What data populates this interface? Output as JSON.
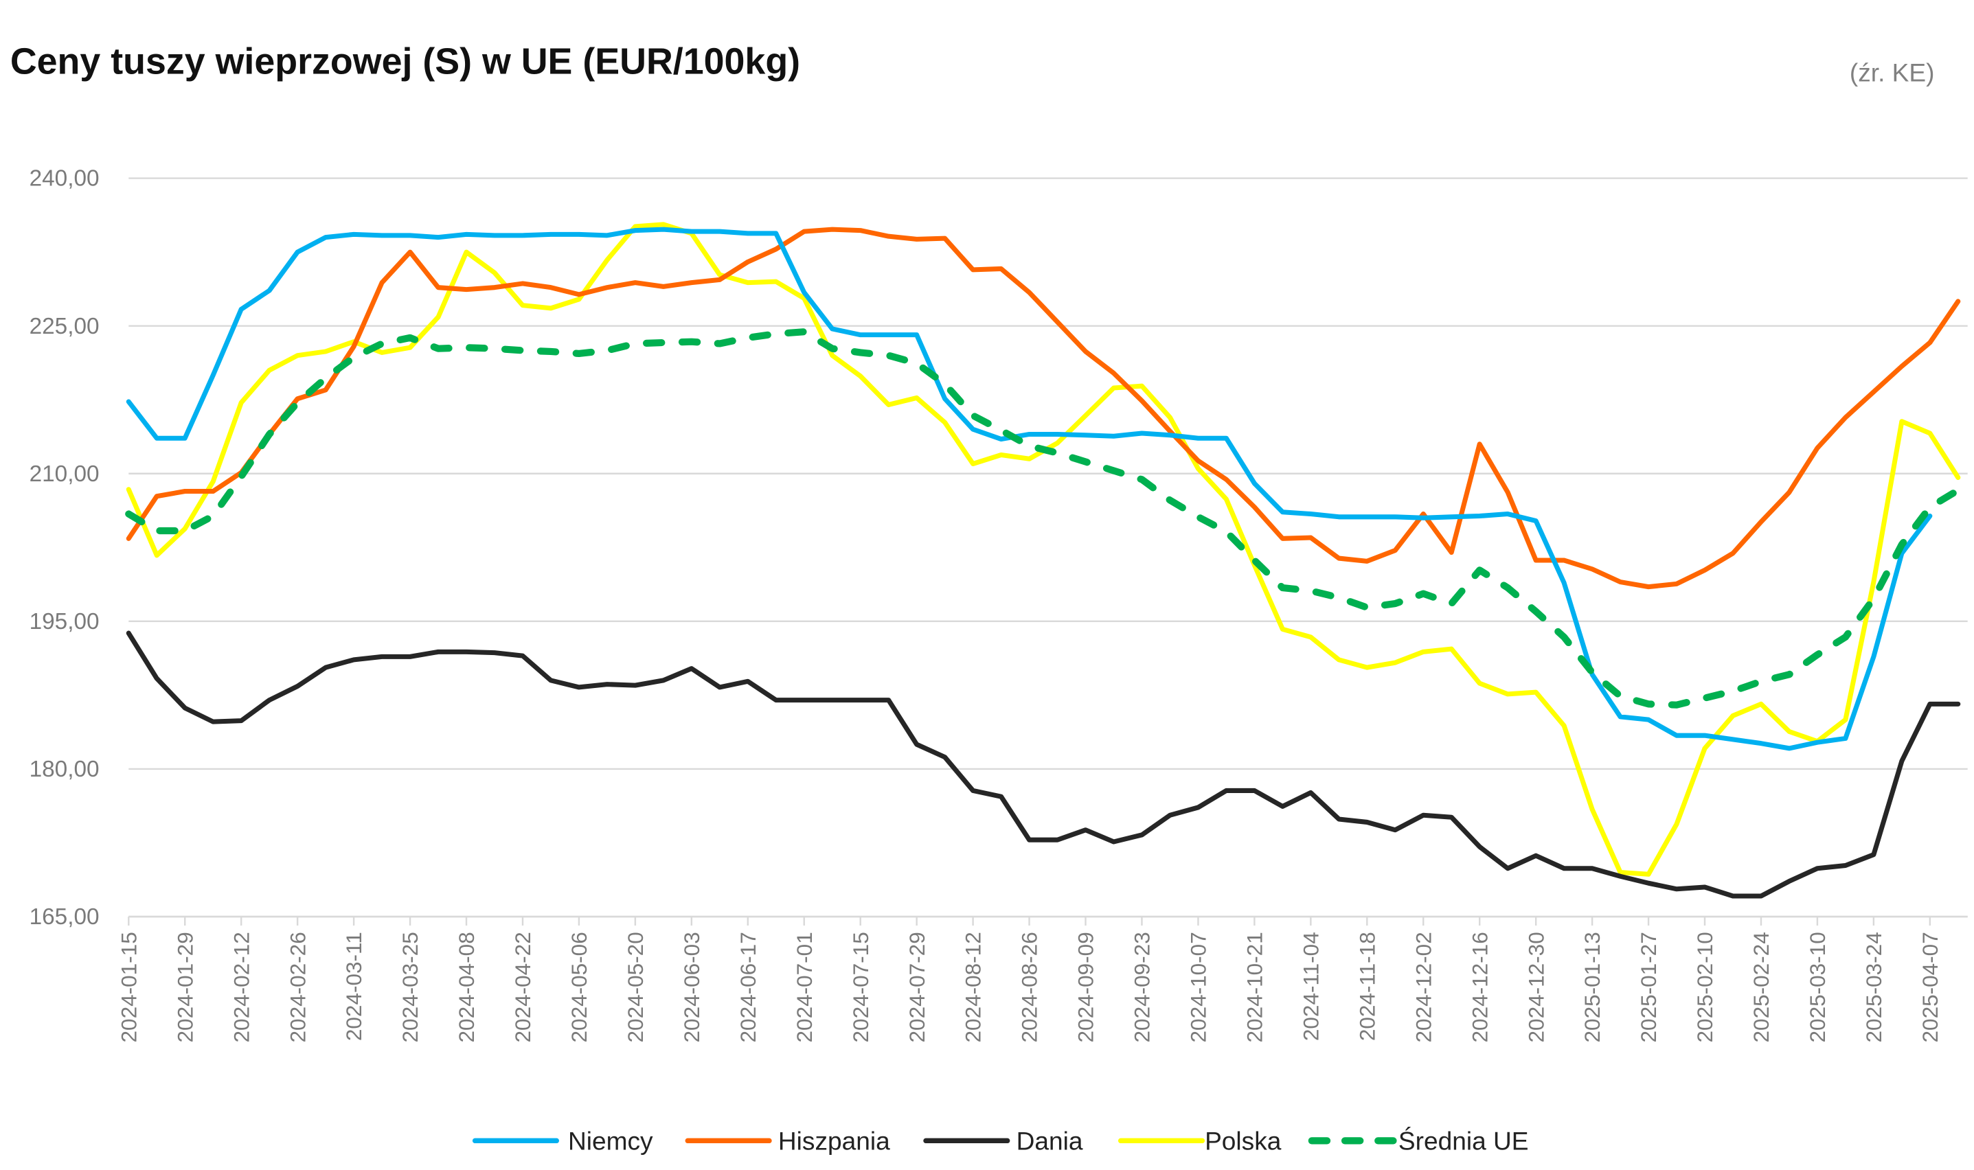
{
  "chart_data": {
    "type": "line",
    "title": "Ceny tuszy wieprzowej (S) w UE (EUR/100kg)",
    "source_note": "(źr. KE)",
    "xlabel": "",
    "ylabel": "",
    "ylim": [
      165,
      240
    ],
    "y_ticks": [
      "165,00",
      "180,00",
      "195,00",
      "210,00",
      "225,00",
      "240,00"
    ],
    "y_tick_values": [
      165,
      180,
      195,
      210,
      225,
      240
    ],
    "grid": "horizontal",
    "legend_position": "bottom",
    "x": [
      "2024-01-15",
      "2024-01-22",
      "2024-01-29",
      "2024-02-05",
      "2024-02-12",
      "2024-02-19",
      "2024-02-26",
      "2024-03-04",
      "2024-03-11",
      "2024-03-18",
      "2024-03-25",
      "2024-04-01",
      "2024-04-08",
      "2024-04-15",
      "2024-04-22",
      "2024-04-29",
      "2024-05-06",
      "2024-05-13",
      "2024-05-20",
      "2024-05-27",
      "2024-06-03",
      "2024-06-10",
      "2024-06-17",
      "2024-06-24",
      "2024-07-01",
      "2024-07-08",
      "2024-07-15",
      "2024-07-22",
      "2024-07-29",
      "2024-08-05",
      "2024-08-12",
      "2024-08-19",
      "2024-08-26",
      "2024-09-02",
      "2024-09-09",
      "2024-09-16",
      "2024-09-23",
      "2024-09-30",
      "2024-10-07",
      "2024-10-14",
      "2024-10-21",
      "2024-10-28",
      "2024-11-04",
      "2024-11-11",
      "2024-11-18",
      "2024-11-25",
      "2024-12-02",
      "2024-12-09",
      "2024-12-16",
      "2024-12-23",
      "2024-12-30",
      "2025-01-06",
      "2025-01-13",
      "2025-01-20",
      "2025-01-27",
      "2025-02-03",
      "2025-02-10",
      "2025-02-17",
      "2025-02-24",
      "2025-03-03",
      "2025-03-10",
      "2025-03-17",
      "2025-03-24",
      "2025-03-31",
      "2025-04-07",
      "2025-04-14"
    ],
    "x_tick_labels": [
      "2024-01-15",
      "2024-01-29",
      "2024-02-12",
      "2024-02-26",
      "2024-03-11",
      "2024-03-25",
      "2024-04-08",
      "2024-04-22",
      "2024-05-06",
      "2024-05-20",
      "2024-06-03",
      "2024-06-17",
      "2024-07-01",
      "2024-07-15",
      "2024-07-29",
      "2024-08-12",
      "2024-08-26",
      "2024-09-09",
      "2024-09-23",
      "2024-10-07",
      "2024-10-21",
      "2024-11-04",
      "2024-11-18",
      "2024-12-02",
      "2024-12-16",
      "2024-12-30",
      "2025-01-13",
      "2025-01-27",
      "2025-02-10",
      "2025-02-24",
      "2025-03-10",
      "2025-03-24",
      "2025-04-07"
    ],
    "series": [
      {
        "name": "Niemcy",
        "color": "#00B0F0",
        "dashed": false,
        "values": [
          217.3,
          213.6,
          213.6,
          220.0,
          226.7,
          228.6,
          232.5,
          234.0,
          234.3,
          234.2,
          234.2,
          234.0,
          234.3,
          234.2,
          234.2,
          234.3,
          234.3,
          234.2,
          234.7,
          234.8,
          234.6,
          234.6,
          234.4,
          234.4,
          228.4,
          224.7,
          224.1,
          224.1,
          224.1,
          217.6,
          214.5,
          213.5,
          214.0,
          214.0,
          213.9,
          213.8,
          214.1,
          213.9,
          213.6,
          213.6,
          209.0,
          206.1,
          205.9,
          205.6,
          205.6,
          205.6,
          205.5,
          205.6,
          205.7,
          205.9,
          205.2,
          198.9,
          189.6,
          185.3,
          185.0,
          183.4,
          183.4,
          183.0,
          182.6,
          182.1,
          182.7,
          183.1,
          191.4,
          201.9,
          205.7,
          null
        ]
      },
      {
        "name": "Hiszpania",
        "color": "#FF6600",
        "dashed": false,
        "values": [
          203.4,
          207.7,
          208.2,
          208.2,
          210.1,
          214.0,
          217.6,
          218.5,
          222.9,
          229.4,
          232.5,
          228.9,
          228.7,
          228.9,
          229.3,
          228.9,
          228.2,
          228.9,
          229.4,
          229.0,
          229.4,
          229.7,
          231.5,
          232.8,
          234.6,
          234.8,
          234.7,
          234.1,
          233.8,
          233.9,
          230.7,
          230.8,
          228.4,
          225.4,
          222.4,
          220.2,
          217.4,
          214.3,
          211.3,
          209.4,
          206.6,
          203.4,
          203.5,
          201.4,
          201.1,
          202.2,
          205.9,
          202.0,
          213.0,
          208.1,
          201.2,
          201.2,
          200.3,
          199.0,
          198.5,
          198.8,
          200.2,
          201.9,
          205.1,
          208.1,
          212.6,
          215.7,
          218.3,
          220.9,
          223.3,
          227.5
        ]
      },
      {
        "name": "Dania",
        "color": "#262626",
        "dashed": false,
        "values": [
          193.8,
          189.2,
          186.2,
          184.8,
          184.9,
          187.0,
          188.4,
          190.3,
          191.1,
          191.4,
          191.4,
          191.9,
          191.9,
          191.8,
          191.5,
          189.0,
          188.3,
          188.6,
          188.5,
          189.0,
          190.2,
          188.3,
          188.9,
          187.0,
          187.0,
          187.0,
          187.0,
          187.0,
          182.5,
          181.2,
          177.8,
          177.2,
          172.8,
          172.8,
          173.8,
          172.6,
          173.3,
          175.3,
          176.1,
          177.8,
          177.8,
          176.2,
          177.6,
          174.9,
          174.6,
          173.8,
          175.3,
          175.1,
          172.1,
          169.9,
          171.2,
          169.9,
          169.9,
          169.1,
          168.4,
          167.8,
          168.0,
          167.1,
          167.1,
          168.6,
          169.9,
          170.2,
          171.3,
          180.8,
          186.6,
          186.6
        ]
      },
      {
        "name": "Polska",
        "color": "#FFFF00",
        "dashed": false,
        "values": [
          208.4,
          201.7,
          204.4,
          209.2,
          217.2,
          220.5,
          222.0,
          222.4,
          223.4,
          222.3,
          222.8,
          225.9,
          232.5,
          230.4,
          227.1,
          226.8,
          227.7,
          231.7,
          235.1,
          235.3,
          234.4,
          230.2,
          229.4,
          229.5,
          227.8,
          222.0,
          219.9,
          217.0,
          217.7,
          215.2,
          211.0,
          211.9,
          211.5,
          213.1,
          215.9,
          218.7,
          218.9,
          215.7,
          210.5,
          207.4,
          200.7,
          194.2,
          193.4,
          191.1,
          190.3,
          190.8,
          191.9,
          192.2,
          188.7,
          187.6,
          187.8,
          184.4,
          175.9,
          169.5,
          169.3,
          174.4,
          182.1,
          185.4,
          186.6,
          183.8,
          182.8,
          185.0,
          199.0,
          215.3,
          214.1,
          209.6
        ]
      },
      {
        "name": "Średnia UE",
        "color": "#00B050",
        "dashed": true,
        "values": [
          205.9,
          204.2,
          204.2,
          205.7,
          209.7,
          214.0,
          217.2,
          219.7,
          221.8,
          223.2,
          223.8,
          222.7,
          222.8,
          222.7,
          222.5,
          222.4,
          222.2,
          222.5,
          223.2,
          223.3,
          223.4,
          223.2,
          223.8,
          224.2,
          224.4,
          222.7,
          222.3,
          222.0,
          221.2,
          219.1,
          215.9,
          214.4,
          212.8,
          212.1,
          211.2,
          210.3,
          209.4,
          207.3,
          205.6,
          204.1,
          201.2,
          198.4,
          198.1,
          197.4,
          196.4,
          196.8,
          197.8,
          196.8,
          200.2,
          198.4,
          196.0,
          193.4,
          189.8,
          187.4,
          186.6,
          186.5,
          187.2,
          187.9,
          188.9,
          189.6,
          191.6,
          193.4,
          197.3,
          202.8,
          206.6,
          208.3
        ]
      }
    ]
  }
}
